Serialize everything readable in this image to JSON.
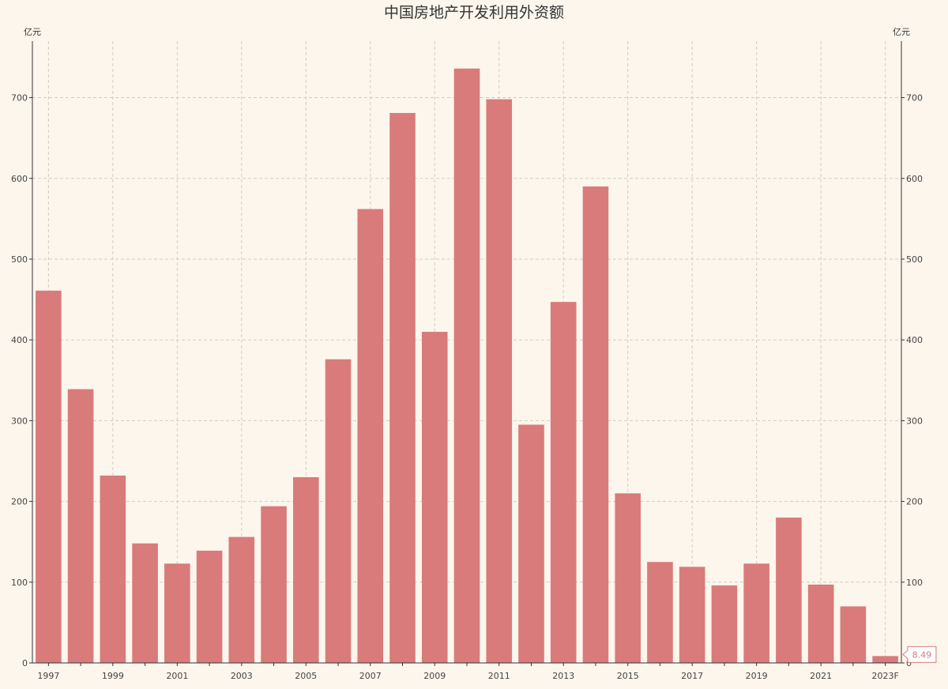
{
  "chart_data": {
    "type": "bar",
    "title": "中国房地产开发利用外资额",
    "y_unit_left": "亿元",
    "y_unit_right": "亿元",
    "categories": [
      "1997",
      "1998",
      "1999",
      "2000",
      "2001",
      "2002",
      "2003",
      "2004",
      "2005",
      "2006",
      "2007",
      "2008",
      "2009",
      "2010",
      "2011",
      "2012",
      "2013",
      "2014",
      "2015",
      "2016",
      "2017",
      "2018",
      "2019",
      "2020",
      "2021",
      "2022",
      "2023F"
    ],
    "x_tick_labels": [
      "1997",
      "1999",
      "2001",
      "2003",
      "2005",
      "2007",
      "2009",
      "2011",
      "2013",
      "2015",
      "2017",
      "2019",
      "2021",
      "2023F"
    ],
    "values": [
      461,
      339,
      232,
      148,
      123,
      139,
      156,
      194,
      230,
      376,
      562,
      681,
      410,
      736,
      698,
      295,
      447,
      590,
      210,
      125,
      119,
      96,
      123,
      180,
      97,
      70,
      8.49
    ],
    "ylim": [
      0,
      770
    ],
    "y_ticks": [
      0,
      100,
      200,
      300,
      400,
      500,
      600,
      700
    ],
    "bar_color": "#d97b7b",
    "grid": true,
    "annotation": {
      "category": "2023F",
      "label": "8.49"
    }
  }
}
